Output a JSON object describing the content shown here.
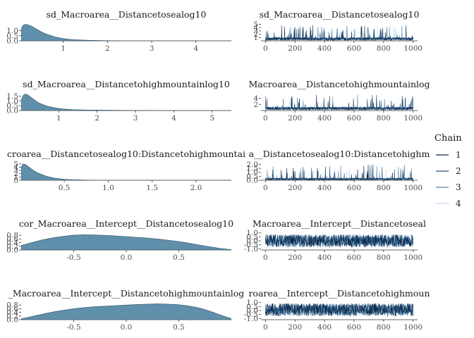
{
  "chart_data": {
    "type": "mcmc-density-trace",
    "legend": {
      "title": "Chain",
      "placement": "right",
      "labels": [
        "1",
        "2",
        "3",
        "4"
      ],
      "colors": [
        "#0b2a4a",
        "#1f4e79",
        "#4f86b5",
        "#c6dbef"
      ]
    },
    "density_fill": "#5f8fab",
    "rows": [
      {
        "density": {
          "title": "sd_Macroarea__Distancetosealog10",
          "xlim": [
            0.05,
            4.8
          ],
          "ylim": [
            0,
            1.8
          ],
          "xticks": [
            1,
            2,
            3,
            4
          ],
          "xtick_labels": [
            "1",
            "2",
            "3",
            "4"
          ],
          "yticks": [
            0,
            0.5,
            1.0
          ],
          "ytick_labels": [
            "0.0",
            "0.5",
            "1.0"
          ],
          "x": [
            0.05,
            0.1,
            0.15,
            0.2,
            0.3,
            0.4,
            0.5,
            0.6,
            0.8,
            1.0,
            1.2,
            1.5,
            1.8,
            2.1,
            2.4,
            3.0,
            4.8
          ],
          "y": [
            1.2,
            1.55,
            1.62,
            1.58,
            1.4,
            1.15,
            0.9,
            0.7,
            0.4,
            0.22,
            0.12,
            0.06,
            0.03,
            0.015,
            0.008,
            0.002,
            0
          ]
        },
        "trace": {
          "title": "sd_Macroarea__Distancetosealog10",
          "xlim": [
            -30,
            1030
          ],
          "ylim": [
            0,
            5.5
          ],
          "xticks": [
            0,
            200,
            400,
            600,
            800,
            1000
          ],
          "xtick_labels": [
            "0",
            "200",
            "400",
            "600",
            "800",
            "1000"
          ],
          "yticks": [
            1,
            2,
            3,
            4,
            5
          ],
          "ytick_labels": [
            "1",
            "2",
            "3",
            "4",
            "5"
          ],
          "center": 0.6,
          "spread": 0.9,
          "spike_max": 4.8,
          "spike_rate": 0.05,
          "min": 0.02
        }
      },
      {
        "density": {
          "title": "sd_Macroarea__Distancetohighmountainlog10",
          "xlim": [
            0.02,
            5.5
          ],
          "ylim": [
            0,
            1.9
          ],
          "xticks": [
            1,
            2,
            3,
            4,
            5
          ],
          "xtick_labels": [
            "1",
            "2",
            "3",
            "4",
            "5"
          ],
          "yticks": [
            0,
            0.5,
            1.0,
            1.5
          ],
          "ytick_labels": [
            "0.0",
            "0.5",
            "1.0",
            "1.5"
          ],
          "x": [
            0.02,
            0.08,
            0.14,
            0.2,
            0.3,
            0.4,
            0.5,
            0.7,
            0.9,
            1.1,
            1.4,
            1.8,
            2.3,
            3.0,
            4.0,
            5.5
          ],
          "y": [
            1.1,
            1.6,
            1.72,
            1.6,
            1.3,
            1.0,
            0.75,
            0.45,
            0.28,
            0.17,
            0.09,
            0.05,
            0.03,
            0.015,
            0.005,
            0
          ]
        },
        "trace": {
          "title": "Macroarea__Distancetohighmountainlog",
          "xlim": [
            -30,
            1030
          ],
          "ylim": [
            0,
            6
          ],
          "xticks": [
            0,
            200,
            400,
            600,
            800,
            1000
          ],
          "xtick_labels": [
            "0",
            "200",
            "400",
            "600",
            "800",
            "1000"
          ],
          "yticks": [
            2,
            4
          ],
          "ytick_labels": [
            "2",
            "4"
          ],
          "center": 0.7,
          "spread": 1.0,
          "spike_max": 5.2,
          "spike_rate": 0.04,
          "min": 0.02
        }
      },
      {
        "density": {
          "title": "croarea__Distancetosealog10:Distancetohighmountai",
          "xlim": [
            0.01,
            2.4
          ],
          "ylim": [
            0,
            5.6
          ],
          "xticks": [
            0.5,
            1.0,
            1.5,
            2.0
          ],
          "xtick_labels": [
            "0.5",
            "1.0",
            "1.5",
            "2.0"
          ],
          "yticks": [
            0,
            1,
            2,
            3,
            4,
            5
          ],
          "ytick_labels": [
            "0",
            "1",
            "2",
            "3",
            "4",
            "5"
          ],
          "x": [
            0.01,
            0.03,
            0.06,
            0.1,
            0.15,
            0.2,
            0.3,
            0.4,
            0.5,
            0.6,
            0.8,
            1.0,
            2.4
          ],
          "y": [
            4.0,
            5.0,
            4.8,
            4.0,
            3.0,
            2.2,
            1.2,
            0.6,
            0.3,
            0.15,
            0.05,
            0.01,
            0
          ]
        },
        "trace": {
          "title": "a__Distancetosealog10:Distancetohighm",
          "xlim": [
            -30,
            1030
          ],
          "ylim": [
            0,
            2.3
          ],
          "xticks": [
            0,
            200,
            400,
            600,
            800,
            1000
          ],
          "xtick_labels": [
            "0",
            "200",
            "400",
            "600",
            "800",
            "1000"
          ],
          "yticks": [
            0,
            0.5,
            1.0,
            1.5,
            2.0
          ],
          "ytick_labels": [
            "0.0",
            "0.5",
            "1.0",
            "1.5",
            "2.0"
          ],
          "center": 0.15,
          "spread": 0.25,
          "spike_max": 2.0,
          "spike_rate": 0.04,
          "min": 0.0
        }
      },
      {
        "density": {
          "title": "cor_Macroarea__Intercept__Distancetosealog10",
          "xlim": [
            -1.0,
            1.0
          ],
          "ylim": [
            0,
            1.0
          ],
          "xticks": [
            -0.5,
            0.0,
            0.5
          ],
          "xtick_labels": [
            "-0.5",
            "0.0",
            "0.5"
          ],
          "yticks": [
            0,
            0.2,
            0.4,
            0.6,
            0.8
          ],
          "ytick_labels": [
            "0.0",
            "0.2",
            "0.4",
            "0.6",
            "0.8"
          ],
          "x": [
            -1.0,
            -0.9,
            -0.8,
            -0.7,
            -0.6,
            -0.5,
            -0.4,
            -0.3,
            -0.2,
            -0.1,
            0.0,
            0.1,
            0.2,
            0.3,
            0.4,
            0.5,
            0.6,
            0.7,
            0.8,
            0.9,
            1.0
          ],
          "y": [
            0.25,
            0.4,
            0.55,
            0.66,
            0.75,
            0.81,
            0.83,
            0.82,
            0.8,
            0.77,
            0.73,
            0.69,
            0.65,
            0.6,
            0.54,
            0.46,
            0.37,
            0.27,
            0.17,
            0.08,
            0.02
          ]
        },
        "trace": {
          "title": "Macroarea__Intercept__Distancetoseal",
          "xlim": [
            -30,
            1030
          ],
          "ylim": [
            -1.15,
            1.15
          ],
          "xticks": [
            0,
            200,
            400,
            600,
            800,
            1000
          ],
          "xtick_labels": [
            "0",
            "200",
            "400",
            "600",
            "800",
            "1000"
          ],
          "yticks": [
            -1.0,
            -0.5,
            0.0,
            0.5,
            1.0
          ],
          "ytick_labels": [
            "-1.0",
            "-0.5",
            "0.0",
            "0.5",
            "1.0"
          ],
          "center": 0.0,
          "spread": 1.6,
          "spike_max": 0,
          "spike_rate": 0,
          "min": -0.98,
          "max": 0.98
        }
      },
      {
        "density": {
          "title": "_Macroarea__Intercept__Distancetohighmountainlog",
          "xlim": [
            -1.0,
            1.0
          ],
          "ylim": [
            0,
            1.0
          ],
          "xticks": [
            -0.5,
            0.0,
            0.5
          ],
          "xtick_labels": [
            "-0.5",
            "0.0",
            "0.5"
          ],
          "yticks": [
            0,
            0.2,
            0.4,
            0.6,
            0.8
          ],
          "ytick_labels": [
            "0.0",
            "0.2",
            "0.4",
            "0.6",
            "0.8"
          ],
          "x": [
            -1.0,
            -0.9,
            -0.8,
            -0.7,
            -0.6,
            -0.5,
            -0.4,
            -0.3,
            -0.2,
            -0.1,
            0.0,
            0.1,
            0.2,
            0.3,
            0.4,
            0.5,
            0.6,
            0.7,
            0.8,
            0.9,
            1.0
          ],
          "y": [
            0.05,
            0.17,
            0.3,
            0.42,
            0.52,
            0.6,
            0.66,
            0.71,
            0.74,
            0.77,
            0.8,
            0.83,
            0.85,
            0.86,
            0.85,
            0.82,
            0.75,
            0.63,
            0.46,
            0.25,
            0.06
          ]
        },
        "trace": {
          "title": "roarea__Intercept__Distancetohighmoun",
          "xlim": [
            -30,
            1030
          ],
          "ylim": [
            -1.15,
            1.15
          ],
          "xticks": [
            0,
            200,
            400,
            600,
            800,
            1000
          ],
          "xtick_labels": [
            "0",
            "200",
            "400",
            "600",
            "800",
            "1000"
          ],
          "yticks": [
            -1.0,
            -0.5,
            0.0,
            0.5,
            1.0
          ],
          "ytick_labels": [
            "-1.0",
            "-0.5",
            "0.0",
            "0.5",
            "1.0"
          ],
          "center": 0.1,
          "spread": 1.6,
          "spike_max": 0,
          "spike_rate": 0,
          "min": -0.98,
          "max": 0.98
        }
      }
    ]
  }
}
